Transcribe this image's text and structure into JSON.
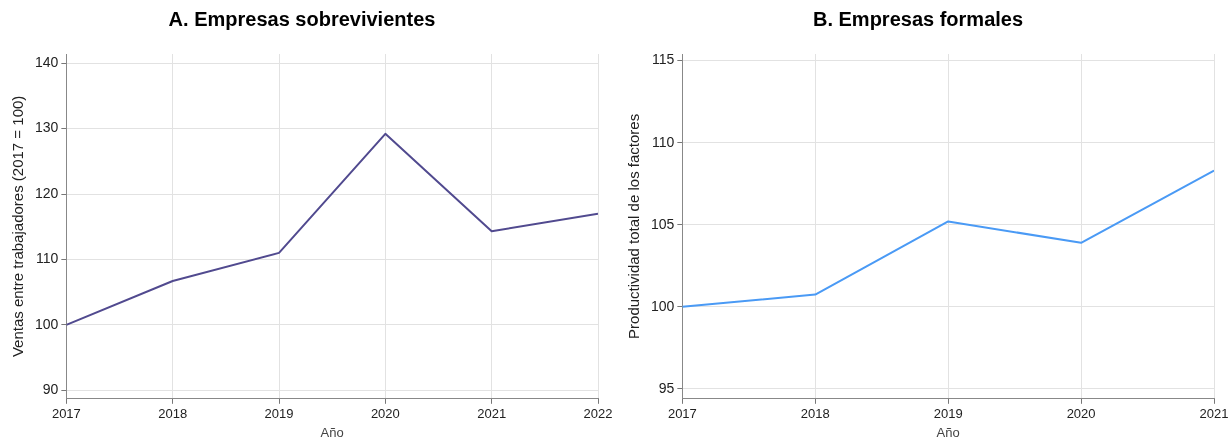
{
  "chart_data": [
    {
      "type": "line",
      "title": "A. Empresas sobrevivientes",
      "xlabel": "Año",
      "ylabel": "Ventas entre trabajadores (2017 = 100)",
      "x": [
        2017,
        2018,
        2019,
        2020,
        2021,
        2022
      ],
      "xlim": [
        2017,
        2022
      ],
      "xticks": [
        2017,
        2018,
        2019,
        2020,
        2021,
        2022
      ],
      "ylim": [
        88.7,
        141.4
      ],
      "yticks": [
        90,
        100,
        110,
        120,
        130,
        140
      ],
      "grid": true,
      "legend": false,
      "marker": "none",
      "series": [
        {
          "color": "#514a8f",
          "values": [
            100,
            106.7,
            111,
            129.2,
            114.3,
            117
          ]
        }
      ]
    },
    {
      "type": "line",
      "title": "B. Empresas formales",
      "xlabel": "Año",
      "ylabel": "Productividad total de los factores",
      "x": [
        2017,
        2018,
        2019,
        2020,
        2021
      ],
      "xlim": [
        2017,
        2021
      ],
      "xticks": [
        2017,
        2018,
        2019,
        2020,
        2021
      ],
      "ylim": [
        94.4,
        115.4
      ],
      "yticks": [
        95,
        100,
        105,
        110,
        115
      ],
      "grid": true,
      "legend": false,
      "marker": "none",
      "series": [
        {
          "color": "#4a9af5",
          "values": [
            100,
            100.75,
            105.2,
            103.9,
            108.3
          ]
        }
      ]
    }
  ]
}
